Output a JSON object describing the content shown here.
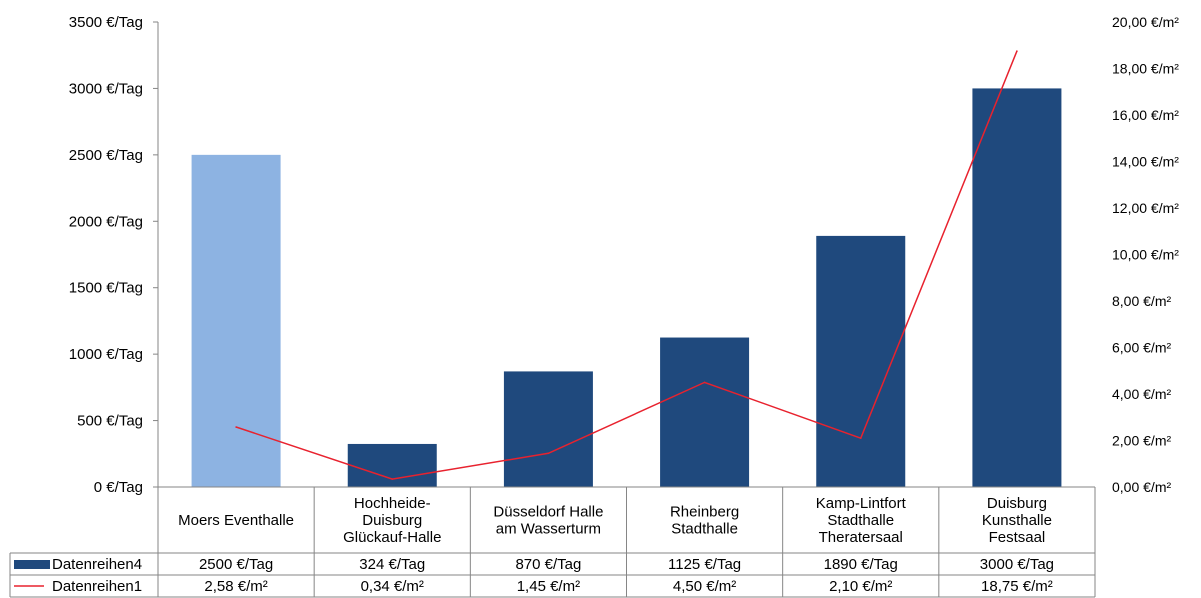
{
  "chart_data": {
    "type": "bar",
    "title": "",
    "categories": [
      [
        "Moers Eventhalle"
      ],
      [
        "Hochheide-",
        "Duisburg",
        "Glückauf-Halle"
      ],
      [
        "Düsseldorf Halle",
        "am Wasserturm"
      ],
      [
        "Rheinberg",
        "Stadthalle"
      ],
      [
        "Kamp-Lintfort",
        "Stadthalle",
        "Theratersaal"
      ],
      [
        "Duisburg",
        "Kunsthalle",
        "Festsaal"
      ]
    ],
    "series": [
      {
        "name": "Datenreihen4",
        "type": "bar",
        "axis": "left",
        "values": [
          2500,
          324,
          870,
          1125,
          1890,
          3000
        ],
        "table_values": [
          "2500 €/Tag",
          "324 €/Tag",
          "870 €/Tag",
          "1125 €/Tag",
          "1890 €/Tag",
          "3000 €/Tag"
        ],
        "color": "#1f497d",
        "highlight_color": "#8db3e2",
        "highlight_index": 0
      },
      {
        "name": "Datenreihen1",
        "type": "line",
        "axis": "right",
        "values": [
          2.58,
          0.34,
          1.45,
          4.5,
          2.1,
          18.75
        ],
        "table_values": [
          "2,58 €/m²",
          "0,34 €/m²",
          "1,45 €/m²",
          "4,50 €/m²",
          "2,10 €/m²",
          "18,75 €/m²"
        ],
        "color": "#e8222e"
      }
    ],
    "y_left": {
      "ylim": [
        0,
        3500
      ],
      "ticks": [
        0,
        500,
        1000,
        1500,
        2000,
        2500,
        3000,
        3500
      ],
      "tick_labels": [
        "0 €/Tag",
        "500 €/Tag",
        "1000 €/Tag",
        "1500 €/Tag",
        "2000 €/Tag",
        "2500 €/Tag",
        "3000 €/Tag",
        "3500 €/Tag"
      ]
    },
    "y_right": {
      "ylim": [
        0,
        20
      ],
      "ticks": [
        0,
        2,
        4,
        6,
        8,
        10,
        12,
        14,
        16,
        18,
        20
      ],
      "tick_labels": [
        "0,00 €/m²",
        "2,00 €/m²",
        "4,00 €/m²",
        "6,00 €/m²",
        "8,00 €/m²",
        "10,00 €/m²",
        "12,00 €/m²",
        "14,00 €/m²",
        "16,00 €/m²",
        "18,00 €/m²",
        "20,00 €/m²"
      ]
    },
    "grid": false,
    "legend": "data-table"
  }
}
